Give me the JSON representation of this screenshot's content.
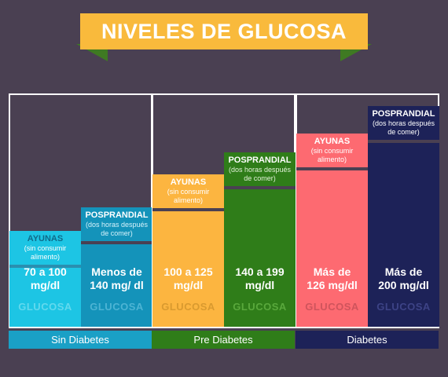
{
  "title": "NIVELES DE GLUCOSA",
  "colors": {
    "background": "#4a4052",
    "ribbon": "#f9ba3c",
    "ribbon_fold": "#3f7a22"
  },
  "chart_data": {
    "type": "bar",
    "title": "NIVELES DE GLUCOSA",
    "groups": [
      {
        "label": "Sin Diabetes",
        "label_color": "#1aa0c6",
        "bars": [
          {
            "kind": "AYUNAS",
            "note": "(sin consumir alimento)",
            "note_lines": [
              "(sin consumir",
              "alimento)"
            ],
            "value_lines": [
              "70 a 100",
              "mg/dl"
            ],
            "range": [
              70,
              100
            ],
            "unit": "mg/dl",
            "footer": "GLUCOSA",
            "color": "#1dc5e4",
            "head_color": "#0f6b8a",
            "note_color": "#ffffff",
            "divider_color": "#2a8fb0",
            "footer_color": "#62d9ee"
          },
          {
            "kind": "POSPRANDIAL",
            "note": "(dos horas después de comer)",
            "note_lines": [
              "(dos horas después",
              "de comer)"
            ],
            "value_lines": [
              "Menos de",
              "140 mg/ dl"
            ],
            "range": [
              0,
              140
            ],
            "unit": "mg/dl",
            "footer": "GLUCOSA",
            "color": "#1493ba",
            "head_color": "#ffffff",
            "note_color": "#d6f2fb",
            "divider_color": "#4a4052",
            "footer_color": "#4db4d4"
          }
        ]
      },
      {
        "label": "Pre Diabetes",
        "label_color": "#2f7d19",
        "bars": [
          {
            "kind": "AYUNAS",
            "note": "(sin consumir alimento)",
            "note_lines": [
              "(sin consumir",
              "alimento)"
            ],
            "value_lines": [
              "100 a 125",
              "mg/dl"
            ],
            "range": [
              100,
              125
            ],
            "unit": "mg/dl",
            "footer": "GLUCOSA",
            "color": "#fcb540",
            "head_color": "#ffffff",
            "note_color": "#ffffff",
            "divider_color": "#4a4052",
            "footer_color": "#d99a2f"
          },
          {
            "kind": "POSPRANDIAL",
            "note": "(dos horas después de comer)",
            "note_lines": [
              "(dos horas después",
              "de comer)"
            ],
            "value_lines": [
              "140 a 199",
              "mg/dl"
            ],
            "range": [
              140,
              199
            ],
            "unit": "mg/dl",
            "footer": "GLUCOSA",
            "color": "#2f7d19",
            "head_color": "#ffffff",
            "note_color": "#e2f2d8",
            "divider_color": "#4a4052",
            "footer_color": "#59a83c"
          }
        ]
      },
      {
        "label": "Diabetes",
        "label_color": "#1d2258",
        "bars": [
          {
            "kind": "AYUNAS",
            "note": "(sin consumir alimento)",
            "note_lines": [
              "(sin consumir",
              "alimento)"
            ],
            "value_lines": [
              "Más de",
              "126 mg/dl"
            ],
            "range": [
              126,
              null
            ],
            "unit": "mg/dl",
            "footer": "GLUCOSA",
            "color": "#fd6a71",
            "head_color": "#ffffff",
            "note_color": "#ffffff",
            "divider_color": "#4a4052",
            "footer_color": "#cf545c"
          },
          {
            "kind": "POSPRANDIAL",
            "note": "(dos horas después de comer)",
            "note_lines": [
              "(dos horas después",
              "de comer)"
            ],
            "value_lines": [
              "Más de",
              "200 mg/dl"
            ],
            "range": [
              200,
              null
            ],
            "unit": "mg/dl",
            "footer": "GLUCOSA",
            "color": "#1d2258",
            "head_color": "#ffffff",
            "note_color": "#ffffff",
            "divider_color": "#4a4052",
            "footer_color": "#3d4386"
          }
        ]
      }
    ]
  }
}
